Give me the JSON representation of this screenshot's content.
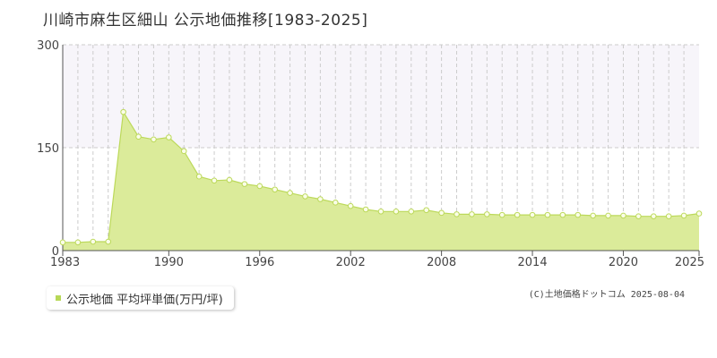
{
  "title": "川崎市麻生区細山 公示地価推移[1983-2025]",
  "legend_label": "公示地価 平均坪単価(万円/坪)",
  "credit": "(C)土地価格ドットコム 2025-08-04",
  "colors": {
    "fill": "#dbeb9a",
    "line": "#bcd95a",
    "marker_fill": "#fafde8",
    "grid": "#cccccc",
    "upper_band": "#f7f5fa"
  },
  "chart_data": {
    "type": "area",
    "title": "川崎市麻生区細山 公示地価推移[1983-2025]",
    "xlabel": "",
    "ylabel": "",
    "xlim": [
      1983,
      2025
    ],
    "ylim": [
      0,
      300
    ],
    "y_ticks": [
      "0",
      "150",
      "300"
    ],
    "x_ticks": [
      "1983",
      "1990",
      "1996",
      "2002",
      "2008",
      "2014",
      "2020",
      "2025"
    ],
    "grid": true,
    "legend": "bottom-left",
    "series": [
      {
        "name": "公示地価 平均坪単価(万円/坪)",
        "x": [
          1983,
          1984,
          1985,
          1986,
          1987,
          1988,
          1989,
          1990,
          1991,
          1992,
          1993,
          1994,
          1995,
          1996,
          1997,
          1998,
          1999,
          2000,
          2001,
          2002,
          2003,
          2004,
          2005,
          2006,
          2007,
          2008,
          2009,
          2010,
          2011,
          2012,
          2013,
          2014,
          2015,
          2016,
          2017,
          2018,
          2019,
          2020,
          2021,
          2022,
          2023,
          2024,
          2025
        ],
        "values": [
          12,
          12,
          13,
          13,
          202,
          166,
          162,
          165,
          145,
          108,
          102,
          103,
          97,
          94,
          89,
          84,
          79,
          75,
          70,
          65,
          60,
          57,
          57,
          57,
          59,
          55,
          53,
          53,
          53,
          52,
          52,
          52,
          52,
          52,
          52,
          51,
          51,
          51,
          50,
          50,
          50,
          51,
          54
        ]
      }
    ]
  }
}
